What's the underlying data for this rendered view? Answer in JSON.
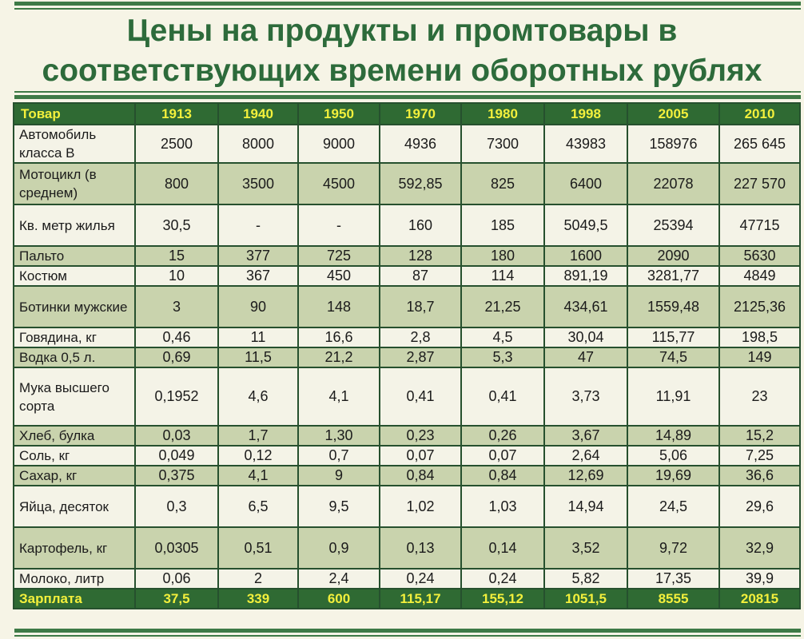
{
  "title_line1": "Цены на продукты и промтовары в",
  "title_line2": "соответствующих времени оборотных рублях",
  "table": {
    "headers": [
      "Товар",
      "1913",
      "1940",
      "1950",
      "1970",
      "1980",
      "1998",
      "2005",
      "2010"
    ],
    "rows": [
      {
        "name": "Автомобиль класса В",
        "values": [
          "2500",
          "8000",
          "9000",
          "4936",
          "7300",
          "43983",
          "158976",
          "265 645"
        ]
      },
      {
        "name": "Мотоцикл (в среднем)",
        "values": [
          "800",
          "3500",
          "4500",
          "592,85",
          "825",
          "6400",
          "22078",
          "227 570"
        ]
      },
      {
        "name": "Кв. метр жилья",
        "values": [
          "30,5",
          "-",
          "-",
          "160",
          "185",
          "5049,5",
          "25394",
          "47715"
        ]
      },
      {
        "name": "Пальто",
        "values": [
          "15",
          "377",
          "725",
          "128",
          "180",
          "1600",
          "2090",
          "5630"
        ]
      },
      {
        "name": "Костюм",
        "values": [
          "10",
          "367",
          "450",
          "87",
          "114",
          "891,19",
          "3281,77",
          "4849"
        ]
      },
      {
        "name": "Ботинки мужские",
        "values": [
          "3",
          "90",
          "148",
          "18,7",
          "21,25",
          "434,61",
          "1559,48",
          "2125,36"
        ]
      },
      {
        "name": "Говядина, кг",
        "values": [
          "0,46",
          "11",
          "16,6",
          "2,8",
          "4,5",
          "30,04",
          "115,77",
          "198,5"
        ]
      },
      {
        "name": "Водка 0,5 л.",
        "values": [
          "0,69",
          "11,5",
          "21,2",
          "2,87",
          "5,3",
          "47",
          "74,5",
          "149"
        ]
      },
      {
        "name": "Мука высшего сорта",
        "values": [
          "0,1952",
          "4,6",
          "4,1",
          "0,41",
          "0,41",
          "3,73",
          "11,91",
          "23"
        ]
      },
      {
        "name": "Хлеб, булка",
        "values": [
          "0,03",
          "1,7",
          "1,30",
          "0,23",
          "0,26",
          "3,67",
          "14,89",
          "15,2"
        ]
      },
      {
        "name": "Соль, кг",
        "values": [
          "0,049",
          "0,12",
          "0,7",
          "0,07",
          "0,07",
          "2,64",
          "5,06",
          "7,25"
        ]
      },
      {
        "name": "Сахар, кг",
        "values": [
          "0,375",
          "4,1",
          "9",
          "0,84",
          "0,84",
          "12,69",
          "19,69",
          "36,6"
        ]
      },
      {
        "name": "Яйца, десяток",
        "values": [
          "0,3",
          "6,5",
          "9,5",
          "1,02",
          "1,03",
          "14,94",
          "24,5",
          "29,6"
        ]
      },
      {
        "name": "Картофель, кг",
        "values": [
          "0,0305",
          "0,51",
          "0,9",
          "0,13",
          "0,14",
          "3,52",
          "9,72",
          "32,9"
        ]
      },
      {
        "name": "Молоко, литр",
        "values": [
          "0,06",
          "2",
          "2,4",
          "0,24",
          "0,24",
          "5,82",
          "17,35",
          "39,9"
        ]
      },
      {
        "name": "Зарплата",
        "values": [
          "37,5",
          "339",
          "600",
          "115,17",
          "155,12",
          "1051,5",
          "8555",
          "20815"
        ]
      }
    ]
  },
  "colors": {
    "title_green": "#2d6b3b",
    "header_bg": "#2f6a33",
    "header_text": "#f3f03c",
    "row_light": "#f4f3e7",
    "row_dark": "#c9d3ad",
    "page_bg": "#f6f4e6"
  }
}
